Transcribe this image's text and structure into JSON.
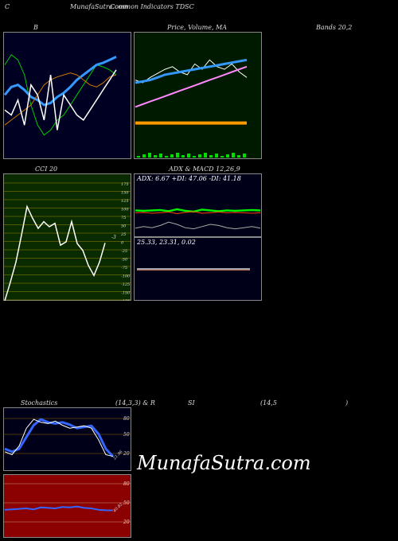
{
  "header": {
    "left": "C",
    "site": "MunafaSutra.com",
    "indicators": "Common Indicators TDSC",
    "b_label": "B",
    "price_label": "Price, Volume, MA",
    "bands_label": "Bands 20,2"
  },
  "cci": {
    "label": "CCI 20",
    "ticks": [
      "175",
      "150",
      "125",
      "100",
      "75",
      "50",
      "25",
      "0",
      "-25",
      "-50",
      "-75",
      "-100",
      "-125",
      "-150",
      "-175"
    ],
    "last": "-3"
  },
  "adx": {
    "title": "ADX  & MACD 12,26,9",
    "readout": "ADX: 6.67  +DI: 47.06  -DI: 41.18"
  },
  "macd": {
    "readout": "25.33,  23.31,  0.02"
  },
  "stoch": {
    "label": "Stochastics",
    "params": "(14,3,3) & R",
    "rsi": "SI",
    "rsi_params": "(14,5",
    "close": ")",
    "ticks": [
      "80",
      "50",
      "20"
    ],
    "last": "21.96"
  },
  "rsi_panel": {
    "ticks": [
      "80",
      "50",
      "20"
    ],
    "last": "40.82"
  },
  "watermark": "MunafaSutra.com",
  "colors": {
    "bb_bg": "#000022",
    "price_bg": "#001a00",
    "cci_bg": "#0a2a00",
    "adx_bg": "#000018",
    "rsi_bg": "#8b0000"
  },
  "chart_data": [
    {
      "type": "line",
      "title": "Bollinger Bands 20,2",
      "series": [
        {
          "values": [
            150,
            160,
            155,
            140,
            110,
            90,
            80,
            85,
            95,
            100,
            110,
            120,
            130,
            140,
            150,
            148,
            145,
            140
          ]
        },
        {
          "values": [
            120,
            128,
            130,
            125,
            118,
            115,
            110,
            112,
            118,
            122,
            128,
            135,
            140,
            145,
            150,
            152,
            155,
            158
          ]
        },
        {
          "values": [
            90,
            95,
            100,
            105,
            110,
            120,
            130,
            135,
            138,
            140,
            142,
            140,
            135,
            130,
            128,
            132,
            138,
            140
          ]
        },
        {
          "values": [
            105,
            100,
            115,
            90,
            130,
            120,
            95,
            140,
            85,
            120,
            110,
            100,
            95,
            105,
            115,
            125,
            135,
            145
          ]
        }
      ]
    },
    {
      "type": "line",
      "title": "Price, Volume, MA",
      "series": [
        {
          "values": [
            120,
            118,
            122,
            125,
            128,
            130,
            126,
            124,
            132,
            128,
            135,
            130,
            128,
            132,
            126,
            122
          ]
        },
        {
          "values": [
            118,
            119,
            120,
            122,
            124,
            125,
            126,
            127,
            128,
            129,
            130,
            131,
            132,
            133,
            134,
            135
          ]
        },
        {
          "values": [
            100,
            102,
            104,
            106,
            108,
            110,
            112,
            114,
            116,
            118,
            120,
            122,
            124,
            126,
            128,
            130
          ]
        },
        {
          "values": [
            88,
            88,
            88,
            88,
            88,
            88,
            88,
            88,
            88,
            88,
            88,
            88,
            88,
            88,
            88,
            88
          ]
        }
      ]
    },
    {
      "type": "line",
      "title": "CCI 20",
      "ylim": [
        -175,
        175
      ],
      "series": [
        {
          "values": [
            -175,
            -120,
            -60,
            20,
            105,
            70,
            40,
            60,
            45,
            55,
            -10,
            0,
            60,
            -5,
            -25,
            -70,
            -100,
            -60,
            -3
          ]
        }
      ]
    },
    {
      "type": "line",
      "title": "ADX & MACD",
      "series": [
        {
          "values": [
            47,
            46,
            47,
            48,
            45,
            50,
            46,
            44,
            49,
            47,
            45,
            47,
            46,
            47,
            48,
            47
          ]
        },
        {
          "values": [
            41,
            42,
            40,
            41,
            43,
            39,
            42,
            44,
            40,
            41,
            43,
            41,
            42,
            41,
            40,
            41
          ]
        },
        {
          "values": [
            6.67,
            8,
            7,
            9,
            12,
            10,
            7,
            6,
            8,
            10,
            9,
            7,
            6,
            7,
            8,
            6.67
          ]
        }
      ]
    },
    {
      "type": "line",
      "title": "Stochastics 14,3,3",
      "ylim": [
        0,
        100
      ],
      "series": [
        {
          "values": [
            30,
            25,
            40,
            70,
            85,
            80,
            78,
            82,
            75,
            70,
            72,
            74,
            70,
            50,
            25,
            22
          ]
        },
        {
          "values": [
            35,
            30,
            35,
            55,
            75,
            85,
            80,
            78,
            80,
            76,
            70,
            72,
            74,
            60,
            35,
            21.96
          ]
        }
      ]
    },
    {
      "type": "line",
      "title": "RSI 14",
      "ylim": [
        0,
        100
      ],
      "series": [
        {
          "values": [
            42,
            43,
            44,
            45,
            43,
            47,
            46,
            45,
            48,
            47,
            49,
            46,
            45,
            42,
            41,
            40.82
          ]
        }
      ]
    }
  ]
}
